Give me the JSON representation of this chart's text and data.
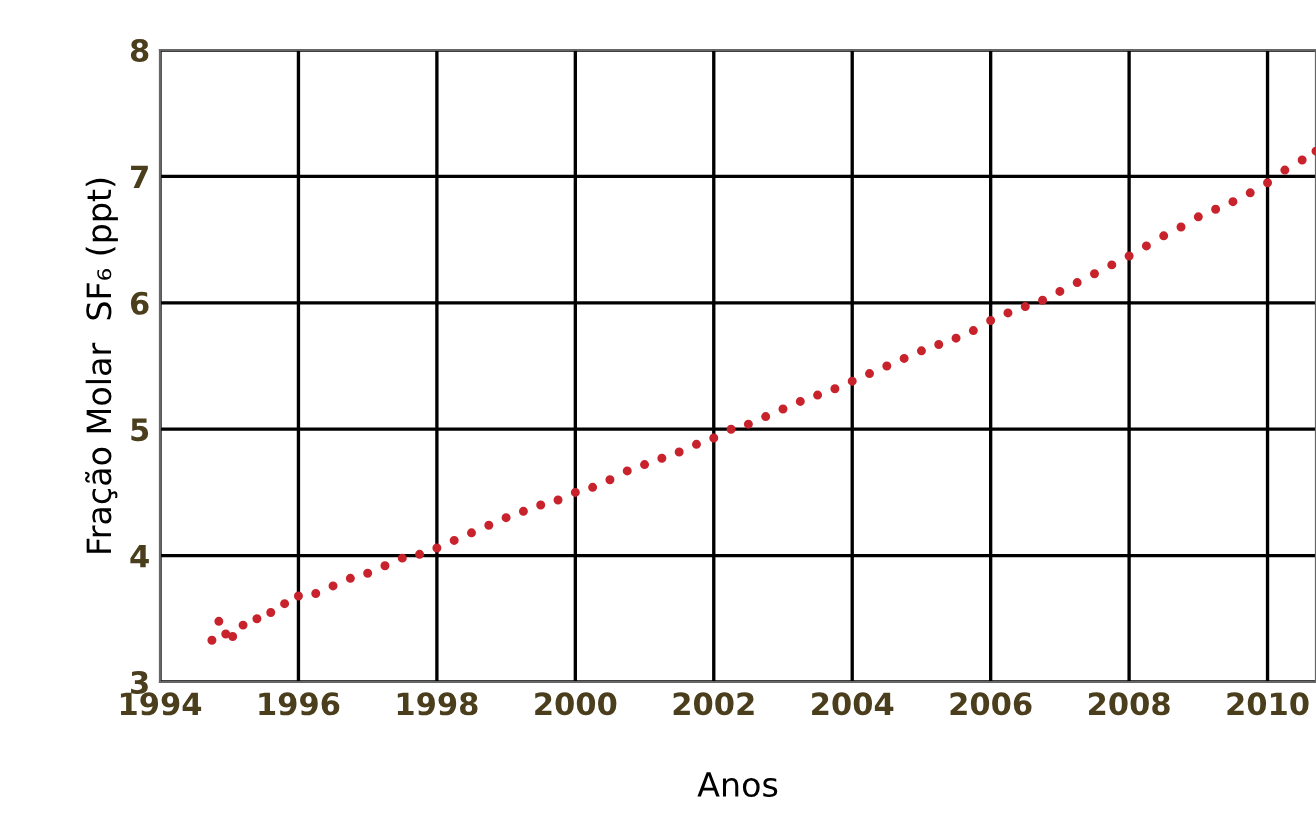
{
  "chart_data": {
    "type": "scatter",
    "xlabel": "Anos",
    "ylabel": "Fração Molar  SF₆ (ppt)",
    "x": [
      1994.75,
      1994.85,
      1994.95,
      1995.05,
      1995.2,
      1995.4,
      1995.6,
      1995.8,
      1996.0,
      1996.25,
      1996.5,
      1996.75,
      1997.0,
      1997.25,
      1997.5,
      1997.75,
      1998.0,
      1998.25,
      1998.5,
      1998.75,
      1999.0,
      1999.25,
      1999.5,
      1999.75,
      2000.0,
      2000.25,
      2000.5,
      2000.75,
      2001.0,
      2001.25,
      2001.5,
      2001.75,
      2002.0,
      2002.25,
      2002.5,
      2002.75,
      2003.0,
      2003.25,
      2003.5,
      2003.75,
      2004.0,
      2004.25,
      2004.5,
      2004.75,
      2005.0,
      2005.25,
      2005.5,
      2005.75,
      2006.0,
      2006.25,
      2006.5,
      2006.75,
      2007.0,
      2007.25,
      2007.5,
      2007.75,
      2008.0,
      2008.25,
      2008.5,
      2008.75,
      2009.0,
      2009.25,
      2009.5,
      2009.75,
      2010.0,
      2010.25,
      2010.5,
      2010.7
    ],
    "series": [
      {
        "color": "#c8232c",
        "values": [
          3.33,
          3.48,
          3.38,
          3.36,
          3.45,
          3.5,
          3.55,
          3.62,
          3.68,
          3.7,
          3.76,
          3.82,
          3.86,
          3.92,
          3.98,
          4.01,
          4.06,
          4.12,
          4.18,
          4.24,
          4.3,
          4.35,
          4.4,
          4.44,
          4.5,
          4.54,
          4.6,
          4.67,
          4.72,
          4.77,
          4.82,
          4.88,
          4.93,
          5.0,
          5.04,
          5.1,
          5.16,
          5.22,
          5.27,
          5.32,
          5.38,
          5.44,
          5.5,
          5.56,
          5.62,
          5.67,
          5.72,
          5.78,
          5.86,
          5.92,
          5.97,
          6.02,
          6.09,
          6.16,
          6.23,
          6.3,
          6.37,
          6.45,
          6.53,
          6.6,
          6.68,
          6.74,
          6.8,
          6.87,
          6.95,
          7.05,
          7.13,
          7.2
        ]
      }
    ],
    "xlim": [
      1994,
      2010.7
    ],
    "xticks": [
      1994,
      1996,
      1998,
      2000,
      2002,
      2004,
      2006,
      2008,
      2010
    ],
    "ylim": [
      3,
      8
    ],
    "yticks": [
      3,
      4,
      5,
      6,
      7,
      8
    ],
    "grid": true,
    "marker": "circle"
  }
}
